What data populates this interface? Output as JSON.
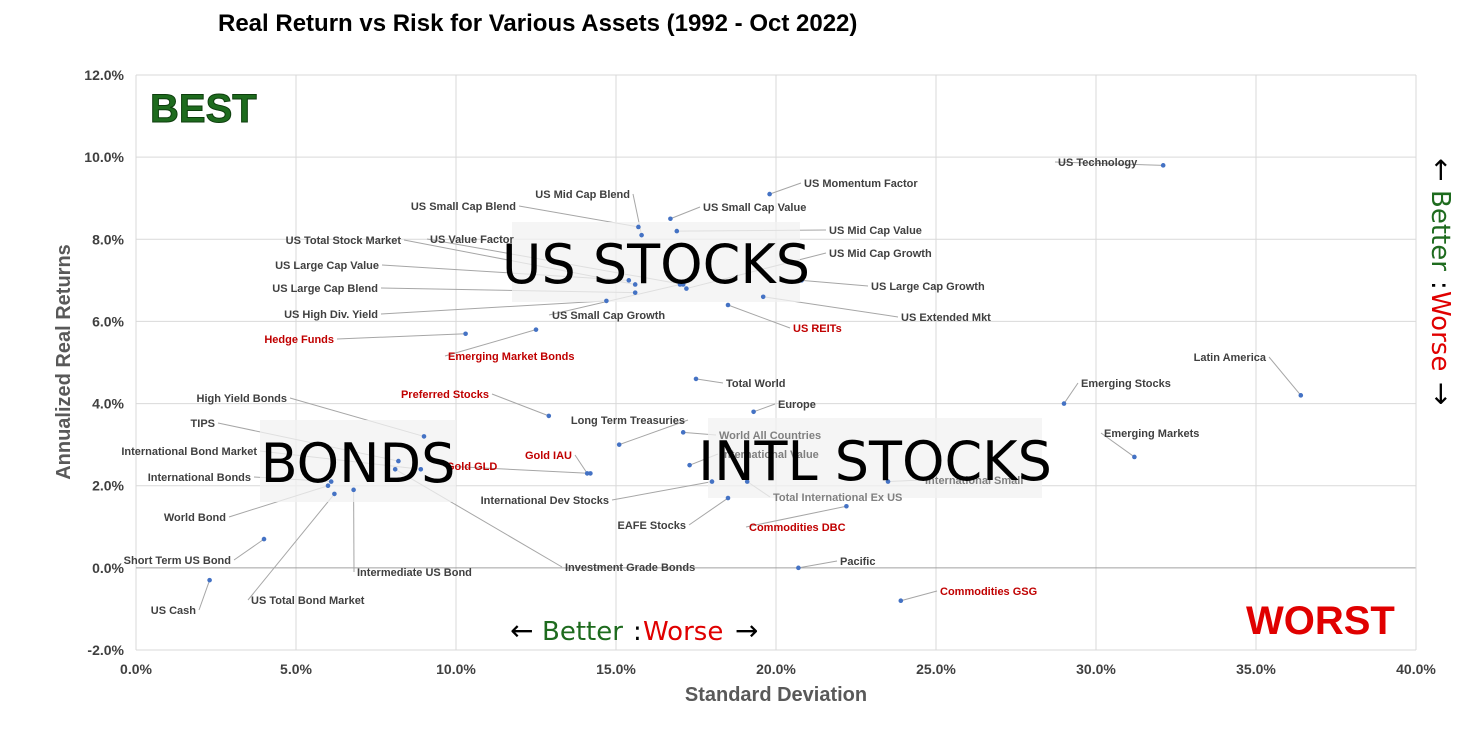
{
  "title": "Real Return vs Risk for Various Assets (1992 - Oct 2022)",
  "chart_data": {
    "type": "scatter",
    "title": "Real Return vs Risk for Various Assets (1992 - Oct 2022)",
    "xlabel": "Standard Deviation",
    "ylabel": "Annualized Real Returns",
    "xlim": [
      0,
      40
    ],
    "ylim": [
      -2,
      12
    ],
    "x_ticks": [
      "0.0%",
      "5.0%",
      "10.0%",
      "15.0%",
      "20.0%",
      "25.0%",
      "30.0%",
      "35.0%",
      "40.0%"
    ],
    "y_ticks": [
      "-2.0%",
      "0.0%",
      "2.0%",
      "4.0%",
      "6.0%",
      "8.0%",
      "10.0%",
      "12.0%"
    ],
    "grid": true,
    "marker_color": "#4472c4",
    "zero_line_color": "#a0a0a0",
    "points": [
      {
        "name": "US Technology",
        "x": 32.1,
        "y": 9.8,
        "color": "#404040"
      },
      {
        "name": "US Momentum Factor",
        "x": 19.8,
        "y": 9.1,
        "color": "#404040"
      },
      {
        "name": "US Mid Cap Blend",
        "x": 15.8,
        "y": 8.1,
        "color": "#404040"
      },
      {
        "name": "US Small Cap Value",
        "x": 16.7,
        "y": 8.5,
        "color": "#404040"
      },
      {
        "name": "US Small Cap Blend",
        "x": 15.7,
        "y": 8.3,
        "color": "#404040"
      },
      {
        "name": "US Mid Cap Value",
        "x": 16.9,
        "y": 8.2,
        "color": "#404040"
      },
      {
        "name": "US Total Stock Market",
        "x": 15.6,
        "y": 6.9,
        "color": "#404040"
      },
      {
        "name": "US Value Factor",
        "x": 17.1,
        "y": 6.9,
        "color": "#404040"
      },
      {
        "name": "US Mid Cap Growth",
        "x": 17.2,
        "y": 6.8,
        "color": "#404040"
      },
      {
        "name": "US Large Cap Value",
        "x": 15.4,
        "y": 7.0,
        "color": "#404040"
      },
      {
        "name": "US Large Cap Growth",
        "x": 20.8,
        "y": 7.0,
        "color": "#404040"
      },
      {
        "name": "US Large Cap Blend",
        "x": 15.6,
        "y": 6.7,
        "color": "#404040"
      },
      {
        "name": "US Extended Mkt",
        "x": 19.6,
        "y": 6.6,
        "color": "#404040"
      },
      {
        "name": "US High Div. Yield",
        "x": 14.7,
        "y": 6.5,
        "color": "#404040"
      },
      {
        "name": "US REITs",
        "x": 18.5,
        "y": 6.4,
        "color": "#c00000"
      },
      {
        "name": "US Small Cap Growth",
        "x": 17.0,
        "y": 6.9,
        "color": "#404040"
      },
      {
        "name": "Hedge Funds",
        "x": 10.3,
        "y": 5.7,
        "color": "#c00000"
      },
      {
        "name": "Emerging Market Bonds",
        "x": 12.5,
        "y": 5.8,
        "color": "#c00000"
      },
      {
        "name": "Latin America",
        "x": 36.4,
        "y": 4.2,
        "color": "#404040"
      },
      {
        "name": "Emerging Stocks",
        "x": 29.0,
        "y": 4.0,
        "color": "#404040"
      },
      {
        "name": "Total World",
        "x": 17.5,
        "y": 4.6,
        "color": "#404040"
      },
      {
        "name": "Europe",
        "x": 19.3,
        "y": 3.8,
        "color": "#404040"
      },
      {
        "name": "Preferred Stocks",
        "x": 12.9,
        "y": 3.7,
        "color": "#c00000"
      },
      {
        "name": "High Yield Bonds",
        "x": 9.0,
        "y": 3.2,
        "color": "#404040"
      },
      {
        "name": "Long Term Treasuries",
        "x": 15.1,
        "y": 3.0,
        "color": "#404040"
      },
      {
        "name": "World All Countries",
        "x": 17.1,
        "y": 3.3,
        "color": "#808080"
      },
      {
        "name": "Emerging Markets",
        "x": 31.2,
        "y": 2.7,
        "color": "#404040"
      },
      {
        "name": "TIPS",
        "x": 8.2,
        "y": 2.6,
        "color": "#404040"
      },
      {
        "name": "International Value",
        "x": 17.3,
        "y": 2.5,
        "color": "#808080"
      },
      {
        "name": "Gold GLD",
        "x": 14.2,
        "y": 2.3,
        "color": "#c00000"
      },
      {
        "name": "Gold IAU",
        "x": 14.1,
        "y": 2.3,
        "color": "#c00000"
      },
      {
        "name": "International Bond Market",
        "x": 8.9,
        "y": 2.4,
        "color": "#404040"
      },
      {
        "name": "International Small",
        "x": 23.5,
        "y": 2.1,
        "color": "#808080"
      },
      {
        "name": "International  Bonds",
        "x": 6.1,
        "y": 2.1,
        "color": "#404040"
      },
      {
        "name": "International Dev Stocks",
        "x": 18.0,
        "y": 2.1,
        "color": "#404040"
      },
      {
        "name": "Total International Ex US",
        "x": 19.1,
        "y": 2.1,
        "color": "#808080"
      },
      {
        "name": "World Bond",
        "x": 6.0,
        "y": 2.0,
        "color": "#404040"
      },
      {
        "name": "Intermediate US Bond",
        "x": 6.8,
        "y": 1.9,
        "color": "#404040"
      },
      {
        "name": "US Total Bond Market",
        "x": 6.2,
        "y": 1.8,
        "color": "#404040"
      },
      {
        "name": "EAFE Stocks",
        "x": 18.5,
        "y": 1.7,
        "color": "#404040"
      },
      {
        "name": "Commodities DBC",
        "x": 22.2,
        "y": 1.5,
        "color": "#c00000"
      },
      {
        "name": "Investment Grade Bonds",
        "x": 8.1,
        "y": 2.4,
        "color": "#404040"
      },
      {
        "name": "Short Term US Bond",
        "x": 4.0,
        "y": 0.7,
        "color": "#404040"
      },
      {
        "name": "Pacific",
        "x": 20.7,
        "y": 0.0,
        "color": "#404040"
      },
      {
        "name": "US Cash",
        "x": 2.3,
        "y": -0.3,
        "color": "#404040"
      },
      {
        "name": "Commodities GSG",
        "x": 23.9,
        "y": -0.8,
        "color": "#c00000"
      }
    ]
  },
  "overlays": {
    "best": "BEST",
    "worst": "WORST",
    "us_stocks": "US STOCKS",
    "bonds": "BONDS",
    "intl_stocks": "INTL STOCKS",
    "better": "Better",
    "colon": ":",
    "worse": "Worse",
    "better_color": "#1e6b1e",
    "worse_color": "#e00000"
  }
}
